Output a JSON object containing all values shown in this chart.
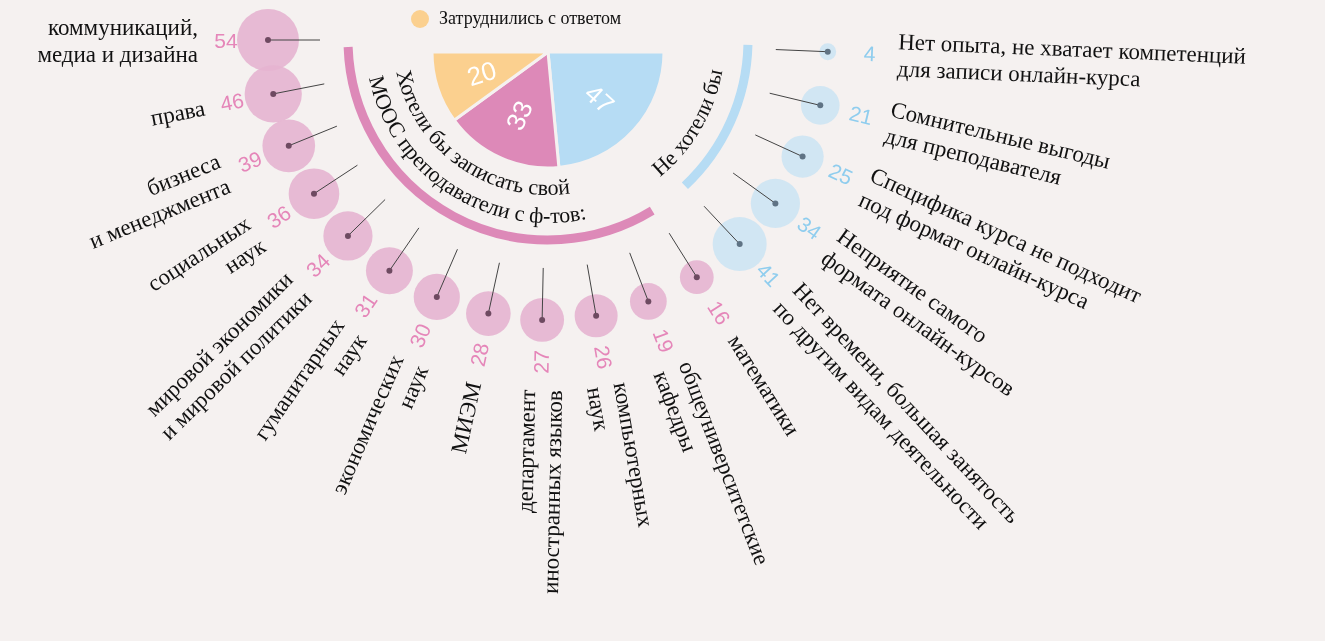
{
  "chart_data": [
    {
      "type": "pie",
      "categories": [
        null,
        null,
        "Затруднились с ответом"
      ],
      "values": [
        47,
        33,
        20
      ],
      "colors": [
        "#b6dcf4",
        "#dd89b8",
        "#fbd08f"
      ],
      "data_labels": true,
      "legend": "top"
    },
    {
      "type": "other",
      "title": "Хотели бы записать свой\nМООС преподаватели с ф-тов:",
      "color": "#e6b4d0",
      "data_labels": true,
      "categories": [
        "коммуникаций,\nмедиа и дизайна",
        "права",
        "бизнеса\nи менеджмента",
        "социальных\nнаук",
        "мировой экономики\nи мировой политики",
        "гуманитарных\nнаук",
        "экономических\nнаук",
        "МИЭМ",
        "департамент\nиностранных языков",
        "компьютерных\nнаук",
        "общеуниверситетские\nкафедры",
        "математики"
      ],
      "values": [
        54,
        46,
        39,
        36,
        34,
        31,
        30,
        28,
        27,
        26,
        19,
        16
      ]
    },
    {
      "type": "other",
      "title": "Не хотели бы",
      "color": "#cde4f3",
      "data_labels": true,
      "categories": [
        "Нет опыта, не хватает компетенций\nдля записи онлайн-курса",
        "Сомнительные выгоды\nдля преподавателя",
        "Специфика курса не подходит\nпод формат онлайн-курса",
        "Неприятие самого\nформата онлайн-курсов",
        "Нет времени, большая занятость\nпо другим видам деятельности"
      ],
      "values": [
        4,
        21,
        25,
        34,
        41
      ]
    }
  ]
}
